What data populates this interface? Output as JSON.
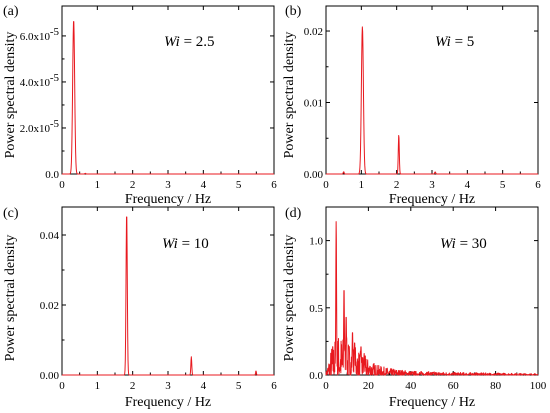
{
  "chart_data": [
    {
      "type": "line",
      "panel_label": "(a)",
      "annotation": "Wi = 2.5",
      "annotation_parts": [
        "Wi",
        " = 2.5"
      ],
      "xlabel": "Frequency / Hz",
      "ylabel": "Power spectral density",
      "xlim": [
        0,
        6
      ],
      "ylim": [
        0,
        7.3e-05
      ],
      "x_ticks": [
        0,
        1,
        2,
        3,
        4,
        5,
        6
      ],
      "x_tick_labels": [
        "0",
        "1",
        "2",
        "3",
        "4",
        "5",
        "6"
      ],
      "y_ticks": [
        0,
        2e-05,
        4e-05,
        6e-05
      ],
      "y_tick_labels": [
        "0.0",
        "2.0x10",
        "4.0x10",
        "6.0x10"
      ],
      "y_tick_exponents": [
        "",
        "-5",
        "-5",
        "-5"
      ],
      "series_color": "#e8191f",
      "peaks": [
        {
          "x": 0.33,
          "y": 6.7e-05,
          "width": 0.04
        },
        {
          "x": 0.66,
          "y": 3e-07,
          "width": 0.02
        }
      ]
    },
    {
      "type": "line",
      "panel_label": "(b)",
      "annotation": "Wi = 5",
      "annotation_parts": [
        "Wi",
        " = 5"
      ],
      "xlabel": "Frequency / Hz",
      "ylabel": "Power spectral density",
      "xlim": [
        0,
        6
      ],
      "ylim": [
        0,
        0.0235
      ],
      "x_ticks": [
        0,
        1,
        2,
        3,
        4,
        5,
        6
      ],
      "x_tick_labels": [
        "0",
        "1",
        "2",
        "3",
        "4",
        "5",
        "6"
      ],
      "y_ticks": [
        0,
        0.01,
        0.02
      ],
      "y_tick_labels": [
        "0.00",
        "0.01",
        "0.02"
      ],
      "series_color": "#e8191f",
      "peaks": [
        {
          "x": 1.03,
          "y": 0.0206,
          "width": 0.04
        },
        {
          "x": 2.06,
          "y": 0.0055,
          "width": 0.02
        },
        {
          "x": 0.5,
          "y": 0.0003,
          "width": 0.02
        },
        {
          "x": 3.09,
          "y": 0.0003,
          "width": 0.02
        }
      ]
    },
    {
      "type": "line",
      "panel_label": "(c)",
      "annotation": "Wi = 10",
      "annotation_parts": [
        "Wi",
        " = 10"
      ],
      "xlabel": "Frequency / Hz",
      "ylabel": "Power spectral density",
      "xlim": [
        0,
        6
      ],
      "ylim": [
        0,
        0.048
      ],
      "x_ticks": [
        0,
        1,
        2,
        3,
        4,
        5,
        6
      ],
      "x_tick_labels": [
        "0",
        "1",
        "2",
        "3",
        "4",
        "5",
        "6"
      ],
      "y_ticks": [
        0,
        0.02,
        0.04
      ],
      "y_tick_labels": [
        "0.00",
        "0.02",
        "0.04"
      ],
      "series_color": "#e8191f",
      "peaks": [
        {
          "x": 1.83,
          "y": 0.0465,
          "width": 0.025
        },
        {
          "x": 3.66,
          "y": 0.0052,
          "width": 0.018
        },
        {
          "x": 5.49,
          "y": 0.0012,
          "width": 0.015
        }
      ]
    },
    {
      "type": "line",
      "panel_label": "(d)",
      "annotation": "Wi = 30",
      "annotation_parts": [
        "Wi",
        " = 30"
      ],
      "xlabel": "Frequency / Hz",
      "ylabel": "Power spectral density",
      "xlim": [
        0,
        100
      ],
      "ylim": [
        0,
        1.25
      ],
      "x_ticks": [
        0,
        20,
        40,
        60,
        80,
        100
      ],
      "x_tick_labels": [
        "0",
        "20",
        "40",
        "60",
        "80",
        "100"
      ],
      "y_ticks": [
        0,
        0.5,
        1.0
      ],
      "y_tick_labels": [
        "0.0",
        "0.5",
        "1.0"
      ],
      "series_color": "#e8191f",
      "peaks": [
        {
          "x": 4.8,
          "y": 1.15,
          "width": 0.25
        },
        {
          "x": 8.5,
          "y": 0.66,
          "width": 0.25
        },
        {
          "x": 9.5,
          "y": 0.45,
          "width": 0.25
        },
        {
          "x": 12.5,
          "y": 0.33,
          "width": 0.25
        },
        {
          "x": 13.5,
          "y": 0.25,
          "width": 0.25
        },
        {
          "x": 16.5,
          "y": 0.22,
          "width": 0.25
        },
        {
          "x": 18.0,
          "y": 0.16,
          "width": 0.25
        }
      ],
      "noise_envelope": [
        [
          0,
          0.02
        ],
        [
          3,
          0.25
        ],
        [
          6,
          0.32
        ],
        [
          10,
          0.27
        ],
        [
          15,
          0.2
        ],
        [
          20,
          0.12
        ],
        [
          25,
          0.07
        ],
        [
          30,
          0.05
        ],
        [
          40,
          0.03
        ],
        [
          60,
          0.02
        ],
        [
          80,
          0.015
        ],
        [
          100,
          0.01
        ]
      ]
    }
  ]
}
